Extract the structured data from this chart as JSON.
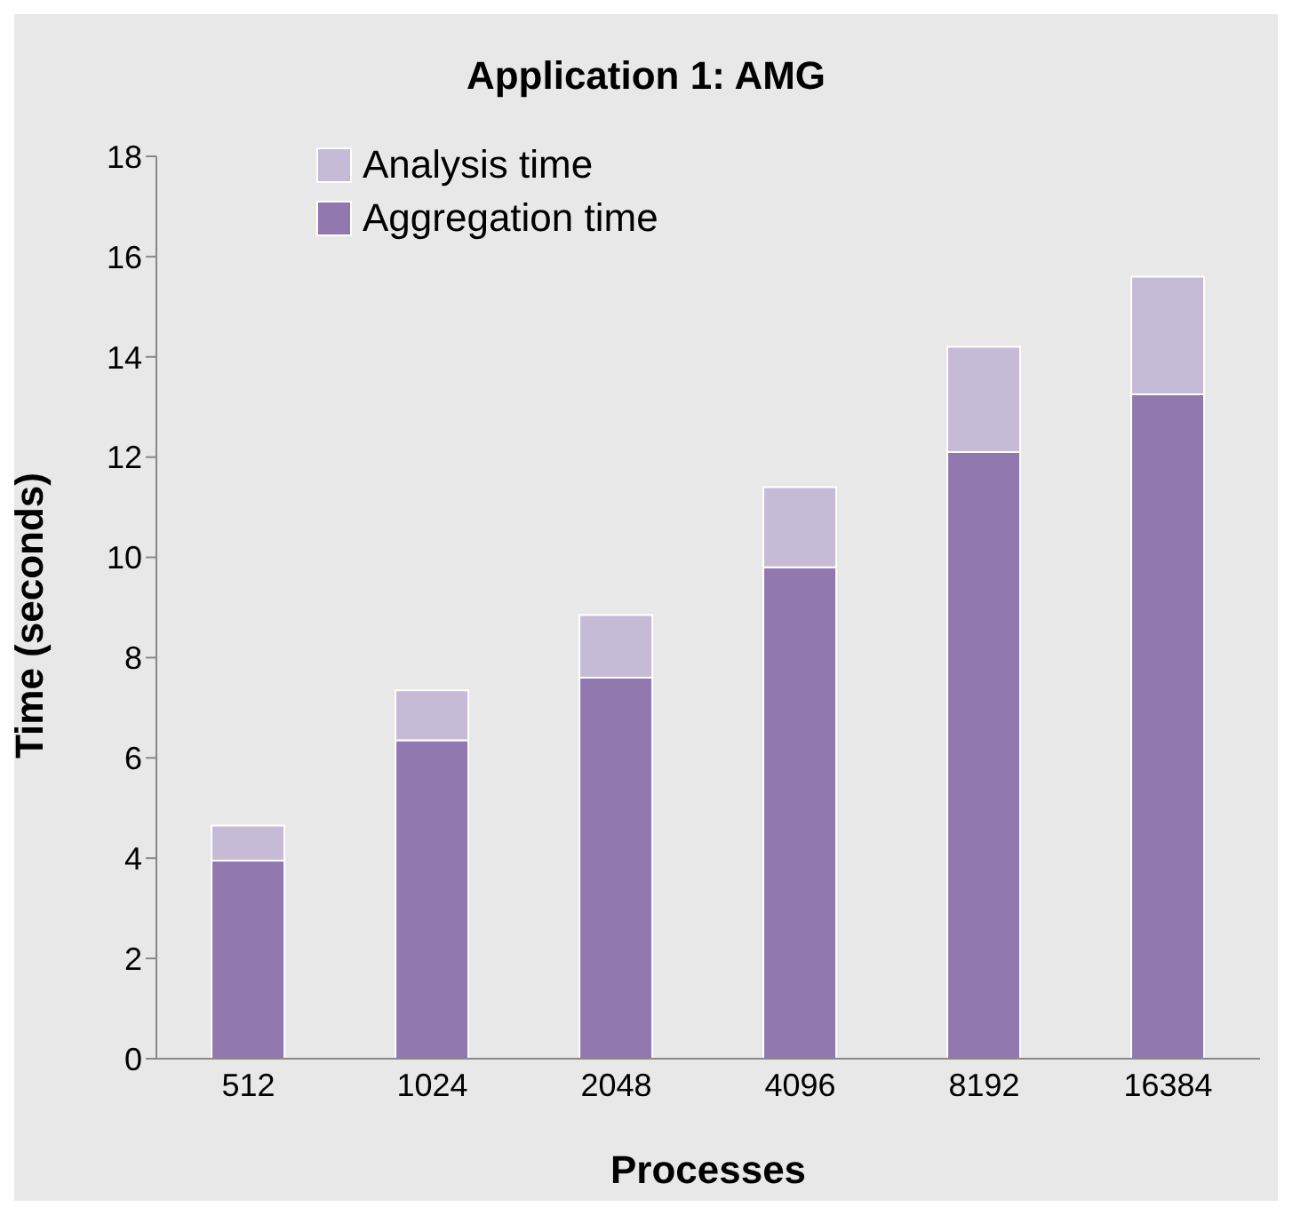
{
  "chart_data": {
    "type": "bar",
    "title": "Application 1: AMG",
    "xlabel": "Processes",
    "ylabel": "Time (seconds)",
    "categories": [
      "512",
      "1024",
      "2048",
      "4096",
      "8192",
      "16384"
    ],
    "stacked": true,
    "series": [
      {
        "name": "Aggregation time",
        "color": "#9179b0",
        "values": [
          3.95,
          6.35,
          7.6,
          9.8,
          12.1,
          13.25
        ]
      },
      {
        "name": "Analysis time",
        "color": "#c5bbd6",
        "values": [
          0.7,
          1.0,
          1.25,
          1.6,
          2.1,
          2.35
        ]
      }
    ],
    "ylim": [
      0,
      18
    ],
    "yticks": [
      0,
      2,
      4,
      6,
      8,
      10,
      12,
      14,
      16,
      18
    ],
    "grid": false,
    "legend": "top left"
  }
}
